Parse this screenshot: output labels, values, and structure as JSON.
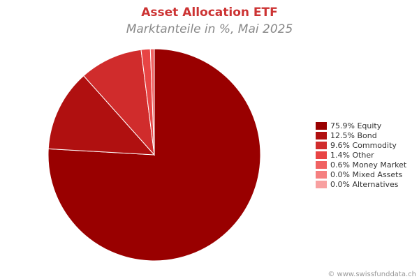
{
  "chart_data": {
    "type": "pie",
    "title": "Asset Allocation ETF",
    "subtitle": "Marktanteile in %, Mai 2025",
    "categories": [
      "Equity",
      "Bond",
      "Commodity",
      "Other",
      "Money Market",
      "Mixed Assets",
      "Alternatives"
    ],
    "values": [
      75.9,
      12.5,
      9.6,
      1.4,
      0.6,
      0.0,
      0.0
    ],
    "value_labels": [
      "75.9%",
      "12.5%",
      "9.6%",
      "1.4%",
      "0.6%",
      "0.0%",
      "0.0%"
    ],
    "colors": [
      "#990000",
      "#b01010",
      "#d02c2c",
      "#e84444",
      "#f06262",
      "#f58080",
      "#f8a0a0"
    ],
    "legend": "right",
    "source": "© www.swissfunddata.ch"
  }
}
